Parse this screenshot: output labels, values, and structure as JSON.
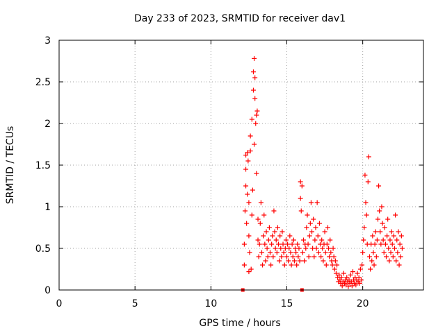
{
  "chart_data": {
    "type": "scatter",
    "title": "Day 233 of 2023, SRMTID for receiver dav1",
    "xlabel": "GPS time / hours",
    "ylabel": "SRMTID / TECUs",
    "xlim": [
      0,
      24
    ],
    "ylim": [
      0,
      3
    ],
    "x_ticks": [
      0,
      5,
      10,
      15,
      20
    ],
    "x_tick_labels": [
      "0",
      "5",
      "10",
      "15",
      "20"
    ],
    "y_ticks": [
      0,
      0.5,
      1,
      1.5,
      2,
      2.5,
      3
    ],
    "y_tick_labels": [
      "0",
      "0.5",
      "1",
      "1.5",
      "2",
      "2.5",
      "3"
    ],
    "grid": true,
    "marker": "+",
    "color": "#ff0000",
    "square_markers": [
      {
        "x": 12.1,
        "y": 0
      },
      {
        "x": 16.0,
        "y": 0
      }
    ],
    "series": [
      {
        "name": "SRMTID",
        "points": [
          [
            12.2,
            0.3
          ],
          [
            12.2,
            0.55
          ],
          [
            12.25,
            0.95
          ],
          [
            12.3,
            1.25
          ],
          [
            12.3,
            1.45
          ],
          [
            12.3,
            1.62
          ],
          [
            12.35,
            0.8
          ],
          [
            12.4,
            1.15
          ],
          [
            12.4,
            1.65
          ],
          [
            12.45,
            1.55
          ],
          [
            12.5,
            0.65
          ],
          [
            12.5,
            1.05
          ],
          [
            12.5,
            0.22
          ],
          [
            12.55,
            0.45
          ],
          [
            12.6,
            1.67
          ],
          [
            12.6,
            1.85
          ],
          [
            12.65,
            0.25
          ],
          [
            12.7,
            0.9
          ],
          [
            12.7,
            2.05
          ],
          [
            12.75,
            1.2
          ],
          [
            12.8,
            2.4
          ],
          [
            12.8,
            2.62
          ],
          [
            12.85,
            2.78
          ],
          [
            12.85,
            1.75
          ],
          [
            12.9,
            2.55
          ],
          [
            12.9,
            2.3
          ],
          [
            12.95,
            2.0
          ],
          [
            13.0,
            2.1
          ],
          [
            13.0,
            1.4
          ],
          [
            13.05,
            2.15
          ],
          [
            13.1,
            0.85
          ],
          [
            13.1,
            0.6
          ],
          [
            13.15,
            0.4
          ],
          [
            13.2,
            0.55
          ],
          [
            13.25,
            0.8
          ],
          [
            13.3,
            1.05
          ],
          [
            13.35,
            0.45
          ],
          [
            13.4,
            0.3
          ],
          [
            13.45,
            0.65
          ],
          [
            13.5,
            0.9
          ],
          [
            13.55,
            0.55
          ],
          [
            13.6,
            0.35
          ],
          [
            13.65,
            0.7
          ],
          [
            13.7,
            0.5
          ],
          [
            13.75,
            0.4
          ],
          [
            13.8,
            0.6
          ],
          [
            13.85,
            0.75
          ],
          [
            13.9,
            0.45
          ],
          [
            13.95,
            0.3
          ],
          [
            14.0,
            0.55
          ],
          [
            14.05,
            0.65
          ],
          [
            14.1,
            0.4
          ],
          [
            14.15,
            0.95
          ],
          [
            14.2,
            0.7
          ],
          [
            14.25,
            0.5
          ],
          [
            14.3,
            0.6
          ],
          [
            14.35,
            0.45
          ],
          [
            14.4,
            0.75
          ],
          [
            14.45,
            0.55
          ],
          [
            14.5,
            0.35
          ],
          [
            14.55,
            0.65
          ],
          [
            14.6,
            0.5
          ],
          [
            14.65,
            0.4
          ],
          [
            14.7,
            0.7
          ],
          [
            14.75,
            0.55
          ],
          [
            14.8,
            0.45
          ],
          [
            14.85,
            0.3
          ],
          [
            14.9,
            0.5
          ],
          [
            14.95,
            0.6
          ],
          [
            15.0,
            0.4
          ],
          [
            15.05,
            0.55
          ],
          [
            15.1,
            0.35
          ],
          [
            15.15,
            0.5
          ],
          [
            15.2,
            0.65
          ],
          [
            15.25,
            0.45
          ],
          [
            15.3,
            0.3
          ],
          [
            15.35,
            0.55
          ],
          [
            15.4,
            0.4
          ],
          [
            15.45,
            0.6
          ],
          [
            15.5,
            0.35
          ],
          [
            15.55,
            0.5
          ],
          [
            15.6,
            0.45
          ],
          [
            15.65,
            0.3
          ],
          [
            15.7,
            0.55
          ],
          [
            15.75,
            0.4
          ],
          [
            15.8,
            0.5
          ],
          [
            15.85,
            0.35
          ],
          [
            15.9,
            1.3
          ],
          [
            15.9,
            1.1
          ],
          [
            15.95,
            0.95
          ],
          [
            16.0,
            1.25
          ],
          [
            16.05,
            0.45
          ],
          [
            16.1,
            0.6
          ],
          [
            16.15,
            0.35
          ],
          [
            16.2,
            0.55
          ],
          [
            16.25,
            0.5
          ],
          [
            16.3,
            0.75
          ],
          [
            16.35,
            0.9
          ],
          [
            16.4,
            0.55
          ],
          [
            16.45,
            0.4
          ],
          [
            16.5,
            0.65
          ],
          [
            16.55,
            0.8
          ],
          [
            16.6,
            1.05
          ],
          [
            16.65,
            0.7
          ],
          [
            16.7,
            0.5
          ],
          [
            16.75,
            0.85
          ],
          [
            16.8,
            0.4
          ],
          [
            16.85,
            0.6
          ],
          [
            16.9,
            0.75
          ],
          [
            16.95,
            0.5
          ],
          [
            17.0,
            1.05
          ],
          [
            17.05,
            0.65
          ],
          [
            17.1,
            0.45
          ],
          [
            17.15,
            0.8
          ],
          [
            17.2,
            0.55
          ],
          [
            17.25,
            0.4
          ],
          [
            17.3,
            0.6
          ],
          [
            17.35,
            0.5
          ],
          [
            17.4,
            0.35
          ],
          [
            17.45,
            0.55
          ],
          [
            17.5,
            0.7
          ],
          [
            17.55,
            0.45
          ],
          [
            17.6,
            0.3
          ],
          [
            17.65,
            0.55
          ],
          [
            17.7,
            0.75
          ],
          [
            17.75,
            0.5
          ],
          [
            17.8,
            0.4
          ],
          [
            17.85,
            0.6
          ],
          [
            17.9,
            0.45
          ],
          [
            17.95,
            0.35
          ],
          [
            18.0,
            0.3
          ],
          [
            18.05,
            0.5
          ],
          [
            18.1,
            0.4
          ],
          [
            18.15,
            0.25
          ],
          [
            18.2,
            0.35
          ],
          [
            18.25,
            0.2
          ],
          [
            18.3,
            0.3
          ],
          [
            18.35,
            0.15
          ],
          [
            18.4,
            0.1
          ],
          [
            18.45,
            0.18
          ],
          [
            18.5,
            0.12
          ],
          [
            18.55,
            0.08
          ],
          [
            18.6,
            0.15
          ],
          [
            18.65,
            0.05
          ],
          [
            18.7,
            0.1
          ],
          [
            18.75,
            0.2
          ],
          [
            18.8,
            0.08
          ],
          [
            18.85,
            0.12
          ],
          [
            18.9,
            0.06
          ],
          [
            18.95,
            0.15
          ],
          [
            19.0,
            0.1
          ],
          [
            19.05,
            0.04
          ],
          [
            19.1,
            0.12
          ],
          [
            19.15,
            0.08
          ],
          [
            19.2,
            0.18
          ],
          [
            19.25,
            0.1
          ],
          [
            19.3,
            0.05
          ],
          [
            19.35,
            0.22
          ],
          [
            19.4,
            0.12
          ],
          [
            19.45,
            0.08
          ],
          [
            19.5,
            0.15
          ],
          [
            19.55,
            0.06
          ],
          [
            19.6,
            0.12
          ],
          [
            19.65,
            0.2
          ],
          [
            19.7,
            0.1
          ],
          [
            19.75,
            0.15
          ],
          [
            19.8,
            0.08
          ],
          [
            19.85,
            0.25
          ],
          [
            19.9,
            0.12
          ],
          [
            19.95,
            0.3
          ],
          [
            20.0,
            0.45
          ],
          [
            20.05,
            0.6
          ],
          [
            20.1,
            0.75
          ],
          [
            20.15,
            1.38
          ],
          [
            20.2,
            1.05
          ],
          [
            20.25,
            0.9
          ],
          [
            20.3,
            0.55
          ],
          [
            20.35,
            1.3
          ],
          [
            20.4,
            1.6
          ],
          [
            20.45,
            0.4
          ],
          [
            20.5,
            0.25
          ],
          [
            20.55,
            0.55
          ],
          [
            20.6,
            0.35
          ],
          [
            20.65,
            0.65
          ],
          [
            20.7,
            0.45
          ],
          [
            20.75,
            0.3
          ],
          [
            20.8,
            0.55
          ],
          [
            20.85,
            0.7
          ],
          [
            20.9,
            0.4
          ],
          [
            20.95,
            0.6
          ],
          [
            21.0,
            0.85
          ],
          [
            21.05,
            1.25
          ],
          [
            21.1,
            0.95
          ],
          [
            21.15,
            0.7
          ],
          [
            21.2,
            0.55
          ],
          [
            21.25,
            1.0
          ],
          [
            21.3,
            0.8
          ],
          [
            21.35,
            0.6
          ],
          [
            21.4,
            0.45
          ],
          [
            21.45,
            0.75
          ],
          [
            21.5,
            0.55
          ],
          [
            21.55,
            0.4
          ],
          [
            21.6,
            0.65
          ],
          [
            21.65,
            0.85
          ],
          [
            21.7,
            0.5
          ],
          [
            21.75,
            0.35
          ],
          [
            21.8,
            0.6
          ],
          [
            21.85,
            0.45
          ],
          [
            21.9,
            0.7
          ],
          [
            21.95,
            0.55
          ],
          [
            22.0,
            0.4
          ],
          [
            22.05,
            0.65
          ],
          [
            22.1,
            0.5
          ],
          [
            22.15,
            0.9
          ],
          [
            22.2,
            0.35
          ],
          [
            22.25,
            0.6
          ],
          [
            22.3,
            0.45
          ],
          [
            22.35,
            0.7
          ],
          [
            22.4,
            0.3
          ],
          [
            22.45,
            0.55
          ],
          [
            22.5,
            0.4
          ],
          [
            22.55,
            0.65
          ],
          [
            22.6,
            0.5
          ]
        ]
      }
    ]
  }
}
